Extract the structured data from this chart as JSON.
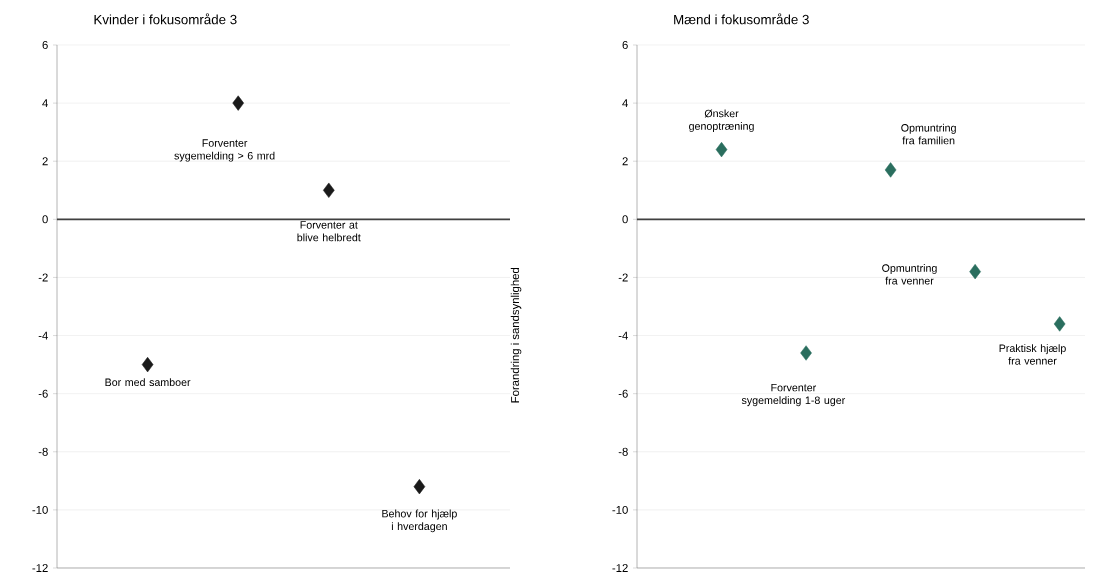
{
  "chart_data": [
    {
      "type": "scatter",
      "title": "Kvinder i fokusområde 3",
      "categories": [
        null,
        null,
        null,
        null
      ],
      "values": [
        -5,
        4,
        1,
        -9.2
      ],
      "color": "#1a1a1a",
      "marker": "diamond",
      "ylim": [
        -12,
        6
      ],
      "yticks": [
        -12,
        -10,
        -8,
        -6,
        -4,
        -2,
        0,
        2,
        4,
        6
      ],
      "grid": "y",
      "tick_labels": "y",
      "ref_lines": [
        {
          "axis": "y",
          "value": 0,
          "color": "#404040"
        }
      ],
      "annotations": [
        "Bor med samboer",
        "Forventer sygemelding > 6 mrd",
        "Forventer at blive helbredt",
        "Behov for hjælp i hverdagen"
      ]
    },
    {
      "type": "scatter",
      "title": "Mænd i fokusområde 3",
      "ylabel": "Forandring i sandsynlighed",
      "categories": [
        null,
        null,
        null,
        null,
        null
      ],
      "values": [
        2.4,
        -4.6,
        1.7,
        -1.8,
        -3.6
      ],
      "color": "#2a6e5e",
      "marker": "diamond",
      "ylim": [
        -12,
        6
      ],
      "yticks": [
        -12,
        -10,
        -8,
        -6,
        -4,
        -2,
        0,
        2,
        4,
        6
      ],
      "grid": "y",
      "tick_labels": "y",
      "ref_lines": [
        {
          "axis": "y",
          "value": 0,
          "color": "#404040"
        }
      ],
      "annotations": [
        "Ønsker genoptræning",
        "Forventer sygemelding 1-8 uger",
        "Opmuntring fra familien",
        "Opmuntring fra venner",
        "Praktisk hjælp fra venner"
      ]
    }
  ]
}
